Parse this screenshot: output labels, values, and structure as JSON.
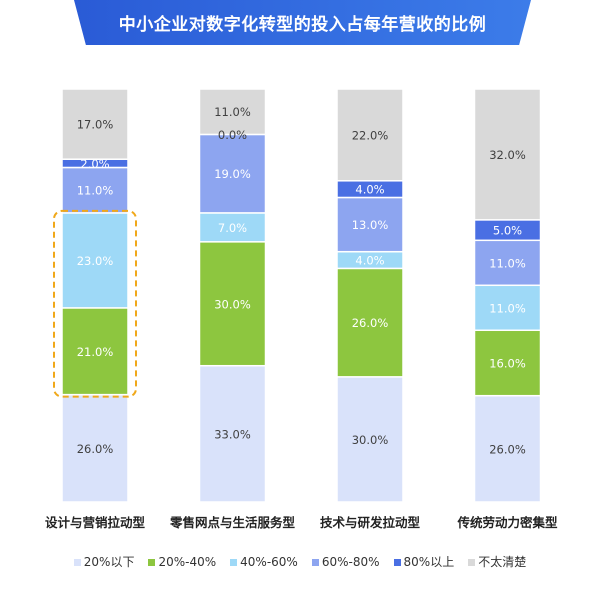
{
  "chart_data": {
    "type": "bar",
    "stacked": true,
    "title": "中小企业对数字化转型的投入占每年营收的比例",
    "categories": [
      "设计与营销拉动型",
      "零售网点与生活服务型",
      "技术与研发拉动型",
      "传统劳动力密集型"
    ],
    "series": [
      {
        "name": "20%以下",
        "values": [
          26.0,
          33.0,
          30.0,
          26.0
        ],
        "color": "#d9e2fa",
        "label_color": "#404040"
      },
      {
        "name": "20%-40%",
        "values": [
          21.0,
          30.0,
          26.0,
          16.0
        ],
        "color": "#8dc63f",
        "label_color": "#ffffff"
      },
      {
        "name": "40%-60%",
        "values": [
          23.0,
          7.0,
          4.0,
          11.0
        ],
        "color": "#9ed9f7",
        "label_color": "#ffffff"
      },
      {
        "name": "60%-80%",
        "values": [
          11.0,
          19.0,
          13.0,
          11.0
        ],
        "color": "#8da5f0",
        "label_color": "#ffffff"
      },
      {
        "name": "80%以上",
        "values": [
          2.0,
          0.0,
          4.0,
          5.0
        ],
        "color": "#4a6fe3",
        "label_color": "#ffffff"
      },
      {
        "name": "不太清楚",
        "values": [
          17.0,
          11.0,
          22.0,
          32.0
        ],
        "color": "#d9d9d9",
        "label_color": "#404040"
      }
    ],
    "ylim": [
      0,
      100
    ],
    "grid": false,
    "legend": "bottom",
    "title_banner_color": "#2f66dd",
    "highlight": {
      "category_index": 0,
      "series_indices": [
        1,
        2
      ],
      "color": "#f0a81a"
    }
  }
}
